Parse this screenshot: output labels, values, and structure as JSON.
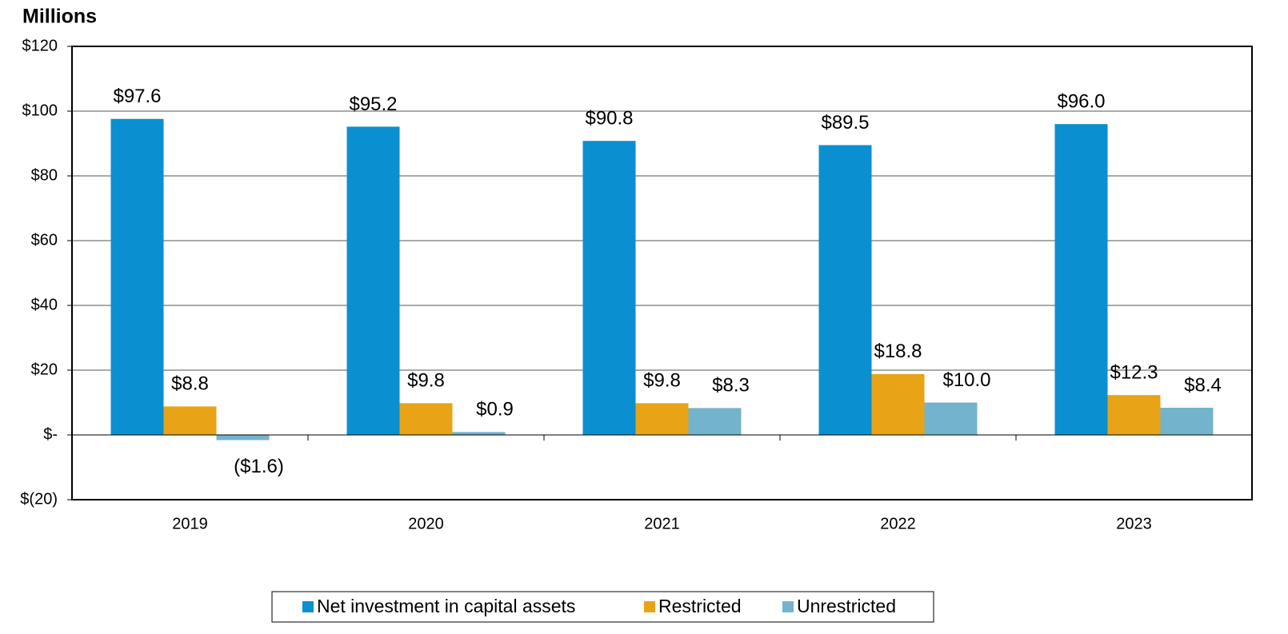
{
  "chart_data": {
    "type": "bar",
    "title": "Millions",
    "categories": [
      "2019",
      "2020",
      "2021",
      "2022",
      "2023"
    ],
    "series": [
      {
        "name": "Net investment in capital assets",
        "color": "#0a8fd0",
        "values": [
          97.6,
          95.2,
          90.8,
          89.5,
          96.0
        ],
        "value_labels": [
          "$97.6",
          "$95.2",
          "$90.8",
          "$89.5",
          "$96.0"
        ]
      },
      {
        "name": "Restricted",
        "color": "#e8a317",
        "values": [
          8.8,
          9.8,
          9.8,
          18.8,
          12.3
        ],
        "value_labels": [
          "$8.8",
          "$9.8",
          "$9.8",
          "$18.8",
          "$12.3"
        ]
      },
      {
        "name": "Unrestricted",
        "color": "#74b3cc",
        "values": [
          -1.6,
          0.9,
          8.3,
          10.0,
          8.4
        ],
        "value_labels": [
          "($1.6)",
          "$0.9",
          "$8.3",
          "$10.0",
          "$8.4"
        ]
      }
    ],
    "ylim": [
      -20,
      120
    ],
    "yticks": [
      {
        "value": -20,
        "label": "$(20)"
      },
      {
        "value": 0,
        "label": "$-"
      },
      {
        "value": 20,
        "label": "$20"
      },
      {
        "value": 40,
        "label": "$40"
      },
      {
        "value": 60,
        "label": "$60"
      },
      {
        "value": 80,
        "label": "$80"
      },
      {
        "value": 100,
        "label": "$100"
      },
      {
        "value": 120,
        "label": "$120"
      }
    ],
    "grid": true,
    "legend": "bottom"
  }
}
